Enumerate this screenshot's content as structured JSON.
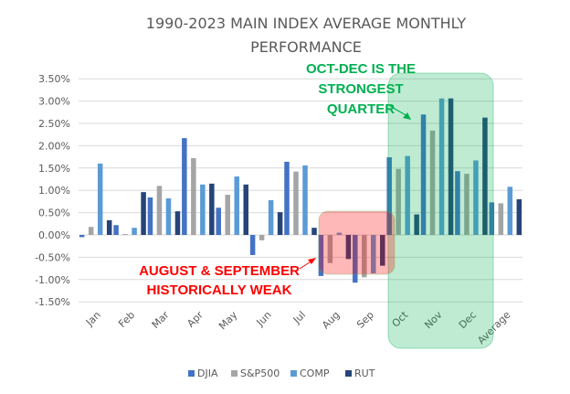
{
  "chart_data": {
    "type": "bar",
    "title_line1": "1990-2023 MAIN INDEX AVERAGE MONTHLY",
    "title_line2": "PERFORMANCE",
    "xlabel": "",
    "ylabel": "",
    "ylim": [
      -1.5,
      3.5
    ],
    "ytick_step": 0.5,
    "yticks": [
      "3.50%",
      "3.00%",
      "2.50%",
      "2.00%",
      "1.50%",
      "1.00%",
      "0.50%",
      "0.00%",
      "-0.50%",
      "-1.00%",
      "-1.50%"
    ],
    "grid": true,
    "legend_position": "bottom",
    "categories": [
      "Jan",
      "Feb",
      "Mar",
      "Apr",
      "May",
      "Jun",
      "Jul",
      "Aug",
      "Sep",
      "Oct",
      "Nov",
      "Dec",
      "Average"
    ],
    "series": [
      {
        "name": "DJIA",
        "color": "#4472C4",
        "values": [
          -0.05,
          0.22,
          0.84,
          2.17,
          0.61,
          -0.45,
          1.64,
          -0.92,
          -1.07,
          1.74,
          2.7,
          1.43,
          0.73
        ]
      },
      {
        "name": "S&P500",
        "color": "#A5A5A5",
        "values": [
          0.18,
          0.02,
          1.1,
          1.72,
          0.9,
          -0.12,
          1.42,
          -0.63,
          -0.95,
          1.48,
          2.34,
          1.37,
          0.71
        ]
      },
      {
        "name": "COMP",
        "color": "#5B9BD5",
        "values": [
          1.6,
          0.16,
          0.82,
          1.13,
          1.31,
          0.78,
          1.56,
          0.05,
          -0.86,
          1.77,
          3.06,
          1.67,
          1.08
        ]
      },
      {
        "name": "RUT",
        "color": "#264478",
        "values": [
          0.33,
          0.96,
          0.53,
          1.15,
          1.13,
          0.51,
          0.16,
          -0.54,
          -0.69,
          0.46,
          3.06,
          2.63,
          0.8
        ]
      }
    ],
    "annotations": [
      {
        "id": "strong",
        "lines": [
          "OCT-DEC IS THE",
          "STRONGEST",
          "QUARTER"
        ],
        "color": "#00B050",
        "highlight": [
          "Oct",
          "Dec"
        ],
        "highlight_color": "#00B050"
      },
      {
        "id": "weak",
        "lines": [
          "AUGUST & SEPTEMBER",
          "HISTORICALLY WEAK"
        ],
        "color": "#FF0000",
        "highlight": [
          "Aug",
          "Sep"
        ],
        "highlight_color": "#FF0000"
      }
    ]
  }
}
